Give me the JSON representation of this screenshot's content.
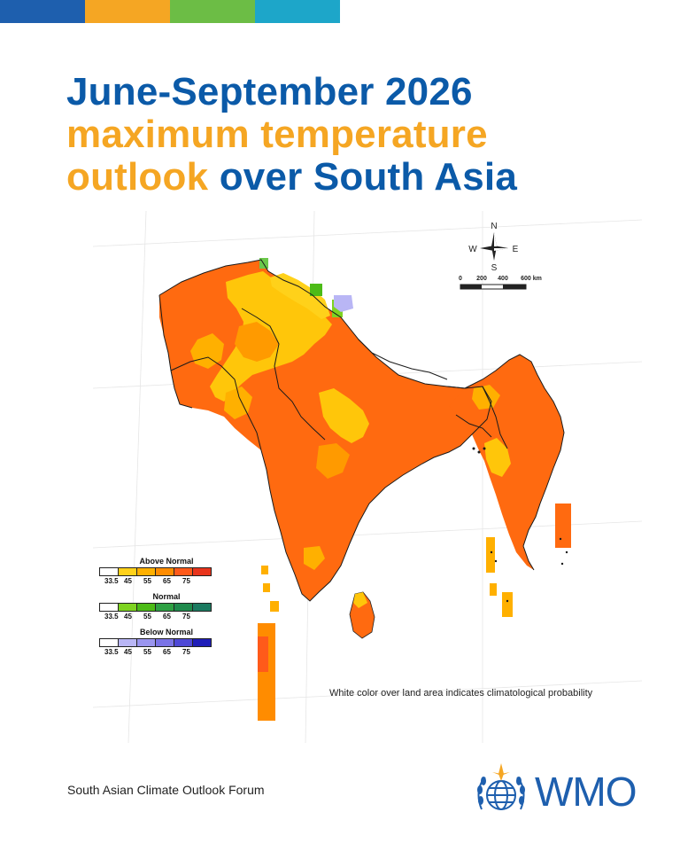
{
  "header": {
    "stripe_colors": [
      "#1e5fae",
      "#f5a623",
      "#6cbd45",
      "#1da6c9"
    ]
  },
  "title": {
    "line1": "June-September 2026",
    "line2": "maximum temperature",
    "line3a": "outlook",
    "line3b": " over South Asia",
    "colors": {
      "blue": "#0b5aa8",
      "orange": "#f5a623"
    }
  },
  "map": {
    "compass": {
      "n": "N",
      "s": "S",
      "e": "E",
      "w": "W"
    },
    "scale": {
      "labels": [
        "0",
        "200",
        "400",
        "600 km"
      ]
    },
    "note": "White color over land area indicates climatological probability"
  },
  "legend": {
    "groups": [
      {
        "title": "Above Normal",
        "colors": [
          "#ffffff",
          "#ffd11a",
          "#ffb000",
          "#ff8c00",
          "#ff5a1a",
          "#e8341c"
        ],
        "ticks": [
          "33.5",
          "45",
          "55",
          "65",
          "75"
        ]
      },
      {
        "title": "Normal",
        "colors": [
          "#ffffff",
          "#7ed321",
          "#4cbb17",
          "#2ea043",
          "#1f8a4c",
          "#1b7a60"
        ],
        "ticks": [
          "33.5",
          "45",
          "55",
          "65",
          "75"
        ]
      },
      {
        "title": "Below Normal",
        "colors": [
          "#ffffff",
          "#b9b6f5",
          "#9a95ef",
          "#7a73e6",
          "#4e48d6",
          "#1f1db8"
        ],
        "ticks": [
          "33.5",
          "45",
          "55",
          "65",
          "75"
        ]
      }
    ]
  },
  "footer": {
    "forum": "South Asian Climate Outlook Forum",
    "logo_text": "WMO",
    "logo_color": "#1e5fae"
  }
}
